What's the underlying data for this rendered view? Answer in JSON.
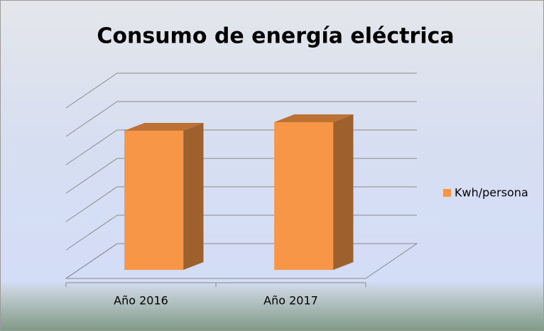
{
  "chart_data": {
    "type": "bar3d",
    "title": "Consumo de energía eléctrica",
    "categories": [
      "Año 2016",
      "Año 2017"
    ],
    "series": [
      {
        "name": "Kwh/persona",
        "color": "#f79646",
        "values": [
          4.9,
          5.2
        ]
      }
    ],
    "ylim": [
      0,
      6
    ],
    "yticks": [
      0,
      1,
      2,
      3,
      4,
      5,
      6
    ],
    "grid": true,
    "legend": "right"
  }
}
